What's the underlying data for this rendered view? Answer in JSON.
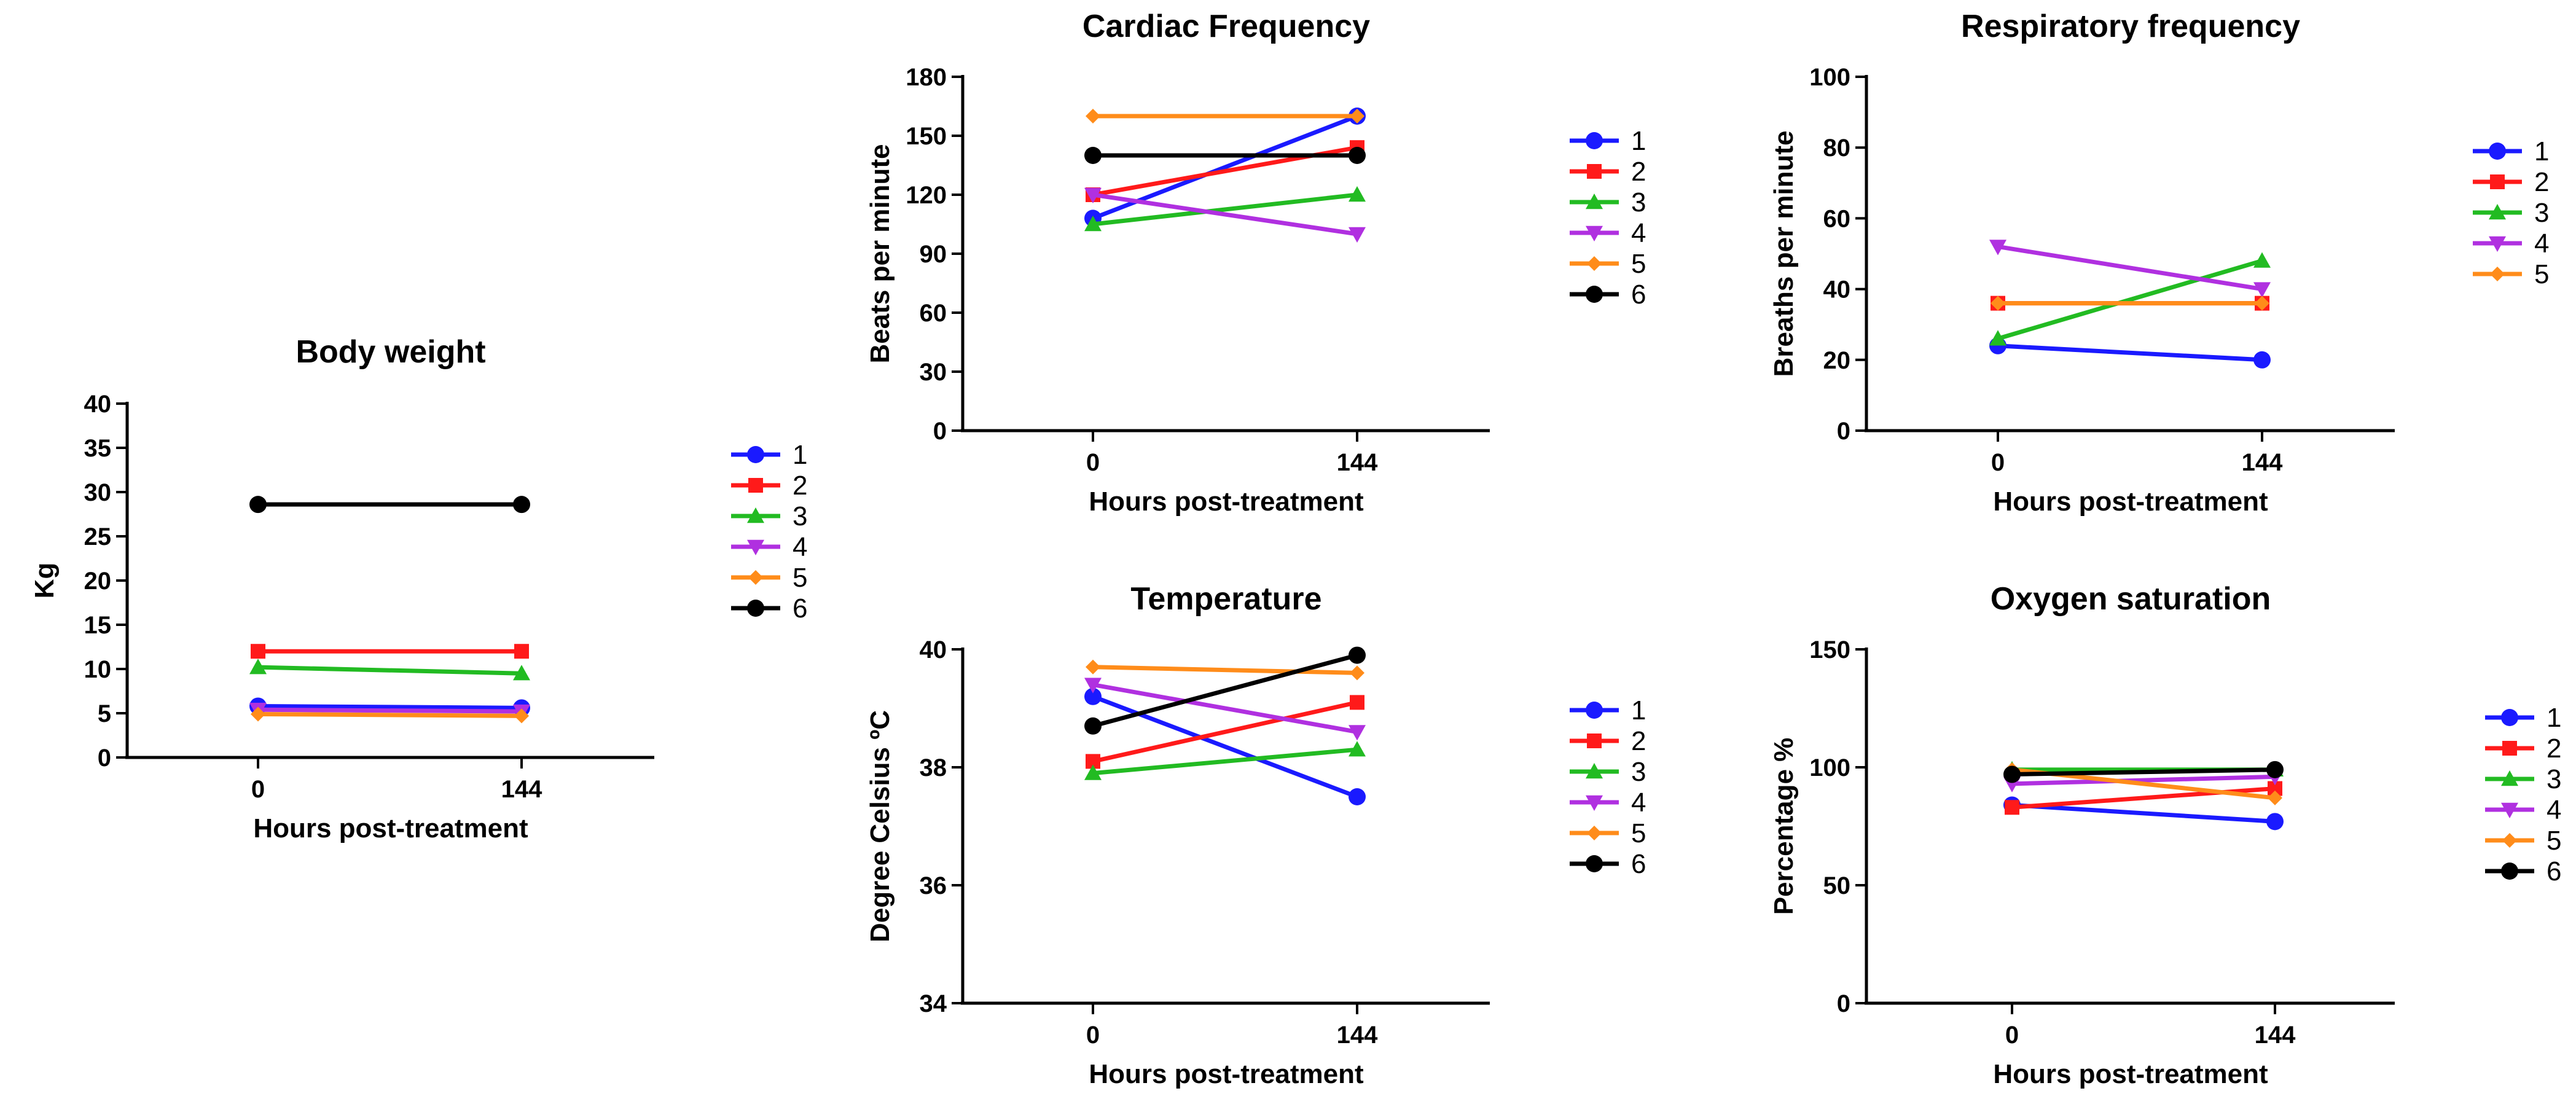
{
  "page": {
    "background": "#ffffff"
  },
  "series_colors": {
    "1": "#1a1aff",
    "2": "#ff1a1a",
    "3": "#22bb22",
    "4": "#b030e0",
    "5": "#ff8c1a",
    "6": "#000000"
  },
  "series_markers": {
    "1": "circle",
    "2": "square",
    "3": "triangle-up",
    "4": "triangle-down",
    "5": "diamond",
    "6": "circle"
  },
  "chart_data": [
    {
      "id": "body-weight",
      "type": "line",
      "title": "Body weight",
      "xlabel": "Hours post-treatment",
      "ylabel": "Kg",
      "categories": [
        "0",
        "144"
      ],
      "ylim": [
        0,
        40
      ],
      "yticks": [
        0,
        5,
        10,
        15,
        20,
        25,
        30,
        35,
        40
      ],
      "legend": [
        "1",
        "2",
        "3",
        "4",
        "5",
        "6"
      ],
      "series": [
        {
          "name": "1",
          "values": [
            5.8,
            5.6
          ]
        },
        {
          "name": "2",
          "values": [
            12.0,
            12.0
          ]
        },
        {
          "name": "3",
          "values": [
            10.2,
            9.5
          ]
        },
        {
          "name": "4",
          "values": [
            5.4,
            5.2
          ]
        },
        {
          "name": "5",
          "values": [
            4.9,
            4.7
          ]
        },
        {
          "name": "6",
          "values": [
            28.6,
            28.6
          ]
        }
      ]
    },
    {
      "id": "cardiac-frequency",
      "type": "line",
      "title": "Cardiac Frequency",
      "xlabel": "Hours post-treatment",
      "ylabel": "Beats per minute",
      "categories": [
        "0",
        "144"
      ],
      "ylim": [
        0,
        180
      ],
      "yticks": [
        0,
        30,
        60,
        90,
        120,
        150,
        180
      ],
      "legend": [
        "1",
        "2",
        "3",
        "4",
        "5",
        "6"
      ],
      "series": [
        {
          "name": "1",
          "values": [
            108,
            160
          ]
        },
        {
          "name": "2",
          "values": [
            120,
            144
          ]
        },
        {
          "name": "3",
          "values": [
            105,
            120
          ]
        },
        {
          "name": "4",
          "values": [
            120,
            100
          ]
        },
        {
          "name": "5",
          "values": [
            160,
            160
          ]
        },
        {
          "name": "6",
          "values": [
            140,
            140
          ]
        }
      ]
    },
    {
      "id": "respiratory-frequency",
      "type": "line",
      "title": "Respiratory frequency",
      "xlabel": "Hours post-treatment",
      "ylabel": "Breaths per minute",
      "categories": [
        "0",
        "144"
      ],
      "ylim": [
        0,
        100
      ],
      "yticks": [
        0,
        20,
        40,
        60,
        80,
        100
      ],
      "legend": [
        "1",
        "2",
        "3",
        "4",
        "5"
      ],
      "series": [
        {
          "name": "1",
          "values": [
            24,
            20
          ]
        },
        {
          "name": "2",
          "values": [
            36,
            36
          ]
        },
        {
          "name": "3",
          "values": [
            26,
            48
          ]
        },
        {
          "name": "4",
          "values": [
            52,
            40
          ]
        },
        {
          "name": "5",
          "values": [
            36,
            36
          ]
        }
      ]
    },
    {
      "id": "temperature",
      "type": "line",
      "title": "Temperature",
      "xlabel": "Hours post-treatment",
      "ylabel": "Degree Celsius ºC",
      "categories": [
        "0",
        "144"
      ],
      "ylim": [
        34,
        40
      ],
      "yticks": [
        34,
        36,
        38,
        40
      ],
      "legend": [
        "1",
        "2",
        "3",
        "4",
        "5",
        "6"
      ],
      "series": [
        {
          "name": "1",
          "values": [
            39.2,
            37.5
          ]
        },
        {
          "name": "2",
          "values": [
            38.1,
            39.1
          ]
        },
        {
          "name": "3",
          "values": [
            37.9,
            38.3
          ]
        },
        {
          "name": "4",
          "values": [
            39.4,
            38.6
          ]
        },
        {
          "name": "5",
          "values": [
            39.7,
            39.6
          ]
        },
        {
          "name": "6",
          "values": [
            38.7,
            39.9
          ]
        }
      ]
    },
    {
      "id": "oxygen-saturation",
      "type": "line",
      "title": "Oxygen saturation",
      "xlabel": "Hours post-treatment",
      "ylabel": "Percentage %",
      "categories": [
        "0",
        "144"
      ],
      "ylim": [
        0,
        150
      ],
      "yticks": [
        0,
        50,
        100,
        150
      ],
      "legend": [
        "1",
        "2",
        "3",
        "4",
        "5",
        "6"
      ],
      "series": [
        {
          "name": "1",
          "values": [
            84,
            77
          ]
        },
        {
          "name": "2",
          "values": [
            83,
            91
          ]
        },
        {
          "name": "3",
          "values": [
            99,
            99
          ]
        },
        {
          "name": "4",
          "values": [
            93,
            96
          ]
        },
        {
          "name": "5",
          "values": [
            99,
            87
          ]
        },
        {
          "name": "6",
          "values": [
            97,
            99
          ]
        }
      ]
    }
  ]
}
